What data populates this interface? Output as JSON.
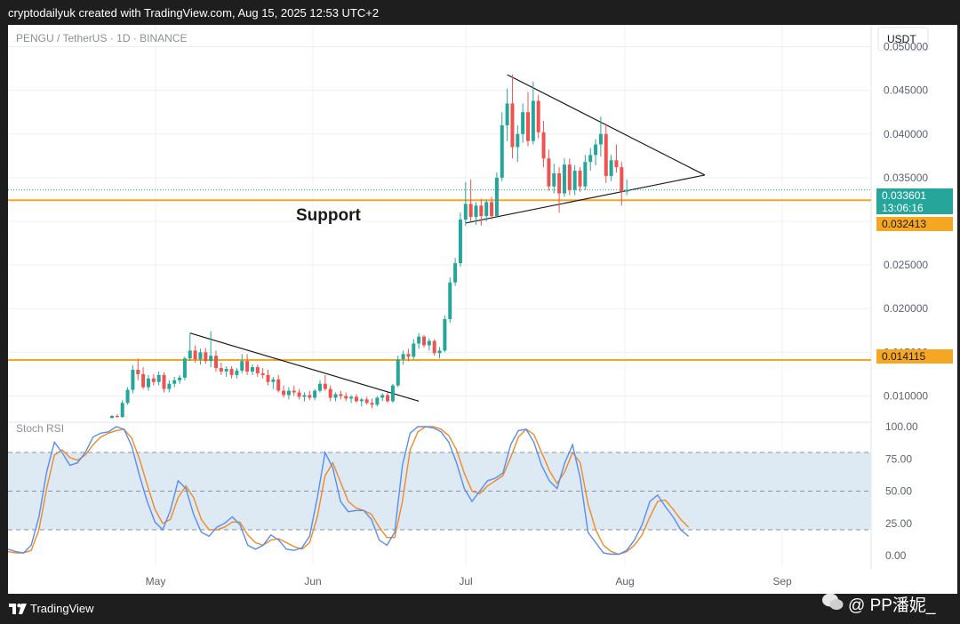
{
  "header": {
    "text": "cryptodailyuk created with TradingView.com, Aug 15, 2025 12:53 UTC+2"
  },
  "symbol_title": "PENGU / TetherUS · 1D · BINANCE",
  "price_axis": {
    "currency": "USDT",
    "ticks": [
      "0.050000",
      "0.045000",
      "0.040000",
      "0.035000",
      "0.025000",
      "0.020000",
      "0.015000",
      "0.010000"
    ],
    "current_price": "0.033601",
    "countdown": "13:06:16",
    "level_labels": [
      "0.032413",
      "0.014115"
    ]
  },
  "annotation": {
    "support": "Support"
  },
  "time_axis": {
    "labels": [
      "May",
      "Jun",
      "Jul",
      "Aug",
      "Sep"
    ]
  },
  "stoch": {
    "title": "Stoch RSI",
    "ticks": [
      "100.00",
      "75.00",
      "50.00",
      "25.00",
      "0.00"
    ]
  },
  "footer": {
    "brand": "TradingView"
  },
  "watermark": {
    "text": "公众号 · PP潘妮",
    "handle": "@ PP潘妮_"
  },
  "colors": {
    "up": "#26a69a",
    "down": "#ef5350",
    "support": "#f5a623",
    "k_line": "#5b8def",
    "d_line": "#f08a24",
    "band": "#dde9f3"
  },
  "chart_data": {
    "type": "candlestick",
    "symbol": "PENGU / TetherUS",
    "interval": "1D",
    "exchange": "BINANCE",
    "ylim": [
      0.0075,
      0.0525
    ],
    "horizontal_levels": [
      0.032413,
      0.014115
    ],
    "current_price": 0.033601,
    "candles": [
      {
        "o": 0.0075,
        "h": 0.0078,
        "l": 0.0074,
        "c": 0.0077
      },
      {
        "o": 0.0077,
        "h": 0.0079,
        "l": 0.0075,
        "c": 0.0076
      },
      {
        "o": 0.0076,
        "h": 0.0095,
        "l": 0.0075,
        "c": 0.0092
      },
      {
        "o": 0.0092,
        "h": 0.011,
        "l": 0.009,
        "c": 0.0107
      },
      {
        "o": 0.0107,
        "h": 0.0135,
        "l": 0.0103,
        "c": 0.013
      },
      {
        "o": 0.013,
        "h": 0.0143,
        "l": 0.0118,
        "c": 0.0125
      },
      {
        "o": 0.0125,
        "h": 0.0133,
        "l": 0.0108,
        "c": 0.011
      },
      {
        "o": 0.011,
        "h": 0.0124,
        "l": 0.0106,
        "c": 0.012
      },
      {
        "o": 0.012,
        "h": 0.0125,
        "l": 0.0112,
        "c": 0.0116
      },
      {
        "o": 0.0116,
        "h": 0.0128,
        "l": 0.0112,
        "c": 0.0124
      },
      {
        "o": 0.0124,
        "h": 0.0127,
        "l": 0.0104,
        "c": 0.0108
      },
      {
        "o": 0.0108,
        "h": 0.0118,
        "l": 0.0104,
        "c": 0.0114
      },
      {
        "o": 0.0114,
        "h": 0.0122,
        "l": 0.011,
        "c": 0.0118
      },
      {
        "o": 0.0118,
        "h": 0.0124,
        "l": 0.0114,
        "c": 0.0121
      },
      {
        "o": 0.0121,
        "h": 0.0145,
        "l": 0.0118,
        "c": 0.0143
      },
      {
        "o": 0.0143,
        "h": 0.0172,
        "l": 0.014,
        "c": 0.0152
      },
      {
        "o": 0.0152,
        "h": 0.0158,
        "l": 0.0138,
        "c": 0.0142
      },
      {
        "o": 0.0142,
        "h": 0.0154,
        "l": 0.0136,
        "c": 0.015
      },
      {
        "o": 0.015,
        "h": 0.0155,
        "l": 0.0137,
        "c": 0.014
      },
      {
        "o": 0.014,
        "h": 0.0174,
        "l": 0.0133,
        "c": 0.0146
      },
      {
        "o": 0.0146,
        "h": 0.0152,
        "l": 0.0128,
        "c": 0.0132
      },
      {
        "o": 0.0132,
        "h": 0.0138,
        "l": 0.0124,
        "c": 0.0128
      },
      {
        "o": 0.0128,
        "h": 0.0134,
        "l": 0.0122,
        "c": 0.0131
      },
      {
        "o": 0.0131,
        "h": 0.0134,
        "l": 0.012,
        "c": 0.0124
      },
      {
        "o": 0.0124,
        "h": 0.0132,
        "l": 0.012,
        "c": 0.0129
      },
      {
        "o": 0.0129,
        "h": 0.0148,
        "l": 0.0126,
        "c": 0.014
      },
      {
        "o": 0.014,
        "h": 0.0148,
        "l": 0.0124,
        "c": 0.0128
      },
      {
        "o": 0.0128,
        "h": 0.0136,
        "l": 0.0124,
        "c": 0.0133
      },
      {
        "o": 0.0133,
        "h": 0.0136,
        "l": 0.0122,
        "c": 0.0126
      },
      {
        "o": 0.0126,
        "h": 0.0132,
        "l": 0.012,
        "c": 0.0124
      },
      {
        "o": 0.0124,
        "h": 0.013,
        "l": 0.0112,
        "c": 0.0116
      },
      {
        "o": 0.0116,
        "h": 0.0122,
        "l": 0.0108,
        "c": 0.0119
      },
      {
        "o": 0.0119,
        "h": 0.0124,
        "l": 0.0104,
        "c": 0.0106
      },
      {
        "o": 0.0106,
        "h": 0.0112,
        "l": 0.0098,
        "c": 0.0101
      },
      {
        "o": 0.0101,
        "h": 0.011,
        "l": 0.0096,
        "c": 0.0106
      },
      {
        "o": 0.0106,
        "h": 0.0112,
        "l": 0.01,
        "c": 0.0104
      },
      {
        "o": 0.0104,
        "h": 0.0108,
        "l": 0.0096,
        "c": 0.0099
      },
      {
        "o": 0.0099,
        "h": 0.0104,
        "l": 0.0094,
        "c": 0.0101
      },
      {
        "o": 0.0101,
        "h": 0.0106,
        "l": 0.0095,
        "c": 0.0098
      },
      {
        "o": 0.0098,
        "h": 0.0108,
        "l": 0.0095,
        "c": 0.0106
      },
      {
        "o": 0.0106,
        "h": 0.0118,
        "l": 0.0104,
        "c": 0.0114
      },
      {
        "o": 0.0114,
        "h": 0.0124,
        "l": 0.0106,
        "c": 0.0108
      },
      {
        "o": 0.0108,
        "h": 0.0112,
        "l": 0.0094,
        "c": 0.0098
      },
      {
        "o": 0.0098,
        "h": 0.0104,
        "l": 0.0094,
        "c": 0.0102
      },
      {
        "o": 0.0102,
        "h": 0.0106,
        "l": 0.0096,
        "c": 0.01
      },
      {
        "o": 0.01,
        "h": 0.0104,
        "l": 0.0094,
        "c": 0.0097
      },
      {
        "o": 0.0097,
        "h": 0.0101,
        "l": 0.0092,
        "c": 0.0099
      },
      {
        "o": 0.0099,
        "h": 0.0102,
        "l": 0.0092,
        "c": 0.0094
      },
      {
        "o": 0.0094,
        "h": 0.0098,
        "l": 0.0088,
        "c": 0.0096
      },
      {
        "o": 0.0096,
        "h": 0.0099,
        "l": 0.009,
        "c": 0.0092
      },
      {
        "o": 0.0092,
        "h": 0.0097,
        "l": 0.0086,
        "c": 0.009
      },
      {
        "o": 0.009,
        "h": 0.01,
        "l": 0.0088,
        "c": 0.0098
      },
      {
        "o": 0.0098,
        "h": 0.0103,
        "l": 0.0094,
        "c": 0.0101
      },
      {
        "o": 0.0101,
        "h": 0.0104,
        "l": 0.0092,
        "c": 0.0094
      },
      {
        "o": 0.0094,
        "h": 0.0114,
        "l": 0.0092,
        "c": 0.0112
      },
      {
        "o": 0.0112,
        "h": 0.0146,
        "l": 0.011,
        "c": 0.0142
      },
      {
        "o": 0.0142,
        "h": 0.0152,
        "l": 0.0136,
        "c": 0.0148
      },
      {
        "o": 0.0148,
        "h": 0.0154,
        "l": 0.014,
        "c": 0.0145
      },
      {
        "o": 0.0145,
        "h": 0.0165,
        "l": 0.0142,
        "c": 0.016
      },
      {
        "o": 0.016,
        "h": 0.0172,
        "l": 0.0154,
        "c": 0.0168
      },
      {
        "o": 0.0168,
        "h": 0.017,
        "l": 0.0155,
        "c": 0.0158
      },
      {
        "o": 0.0158,
        "h": 0.0166,
        "l": 0.0152,
        "c": 0.0163
      },
      {
        "o": 0.0163,
        "h": 0.0165,
        "l": 0.0146,
        "c": 0.0149
      },
      {
        "o": 0.0149,
        "h": 0.0156,
        "l": 0.0143,
        "c": 0.0152
      },
      {
        "o": 0.0152,
        "h": 0.0192,
        "l": 0.015,
        "c": 0.0188
      },
      {
        "o": 0.0188,
        "h": 0.0236,
        "l": 0.0184,
        "c": 0.023
      },
      {
        "o": 0.023,
        "h": 0.0258,
        "l": 0.0226,
        "c": 0.0252
      },
      {
        "o": 0.0252,
        "h": 0.031,
        "l": 0.0248,
        "c": 0.0302
      },
      {
        "o": 0.0302,
        "h": 0.0345,
        "l": 0.0295,
        "c": 0.032
      },
      {
        "o": 0.032,
        "h": 0.0348,
        "l": 0.03,
        "c": 0.0305
      },
      {
        "o": 0.0305,
        "h": 0.0322,
        "l": 0.0296,
        "c": 0.0318
      },
      {
        "o": 0.0318,
        "h": 0.0326,
        "l": 0.0295,
        "c": 0.0306
      },
      {
        "o": 0.0306,
        "h": 0.0325,
        "l": 0.03,
        "c": 0.0322
      },
      {
        "o": 0.0322,
        "h": 0.0328,
        "l": 0.0302,
        "c": 0.0306
      },
      {
        "o": 0.0306,
        "h": 0.0356,
        "l": 0.0304,
        "c": 0.035
      },
      {
        "o": 0.035,
        "h": 0.0425,
        "l": 0.0346,
        "c": 0.041
      },
      {
        "o": 0.041,
        "h": 0.0452,
        "l": 0.0392,
        "c": 0.0435
      },
      {
        "o": 0.0435,
        "h": 0.0468,
        "l": 0.0372,
        "c": 0.0385
      },
      {
        "o": 0.0385,
        "h": 0.041,
        "l": 0.0368,
        "c": 0.04
      },
      {
        "o": 0.04,
        "h": 0.0435,
        "l": 0.039,
        "c": 0.0425
      },
      {
        "o": 0.0425,
        "h": 0.0448,
        "l": 0.0386,
        "c": 0.0392
      },
      {
        "o": 0.0392,
        "h": 0.046,
        "l": 0.0388,
        "c": 0.0438
      },
      {
        "o": 0.0438,
        "h": 0.0445,
        "l": 0.0395,
        "c": 0.0402
      },
      {
        "o": 0.0402,
        "h": 0.0415,
        "l": 0.0362,
        "c": 0.0372
      },
      {
        "o": 0.0372,
        "h": 0.0382,
        "l": 0.0335,
        "c": 0.034
      },
      {
        "o": 0.034,
        "h": 0.0366,
        "l": 0.0332,
        "c": 0.0355
      },
      {
        "o": 0.0355,
        "h": 0.0362,
        "l": 0.031,
        "c": 0.0332
      },
      {
        "o": 0.0332,
        "h": 0.0372,
        "l": 0.0328,
        "c": 0.0365
      },
      {
        "o": 0.0365,
        "h": 0.0372,
        "l": 0.033,
        "c": 0.0336
      },
      {
        "o": 0.0336,
        "h": 0.0364,
        "l": 0.033,
        "c": 0.0358
      },
      {
        "o": 0.0358,
        "h": 0.0362,
        "l": 0.0334,
        "c": 0.034
      },
      {
        "o": 0.034,
        "h": 0.0376,
        "l": 0.0336,
        "c": 0.0368
      },
      {
        "o": 0.0368,
        "h": 0.0384,
        "l": 0.0358,
        "c": 0.0376
      },
      {
        "o": 0.0376,
        "h": 0.0394,
        "l": 0.0364,
        "c": 0.0388
      },
      {
        "o": 0.0388,
        "h": 0.042,
        "l": 0.0374,
        "c": 0.04
      },
      {
        "o": 0.04,
        "h": 0.0412,
        "l": 0.0344,
        "c": 0.0352
      },
      {
        "o": 0.0352,
        "h": 0.0376,
        "l": 0.0346,
        "c": 0.037
      },
      {
        "o": 0.037,
        "h": 0.0388,
        "l": 0.0356,
        "c": 0.0362
      },
      {
        "o": 0.0362,
        "h": 0.0368,
        "l": 0.0318,
        "c": 0.0334
      },
      {
        "o": 0.0334,
        "h": 0.0348,
        "l": 0.033,
        "c": 0.0336
      }
    ],
    "trendlines": [
      {
        "from": {
          "index": 15,
          "value": 0.0172
        },
        "to": {
          "index": 59,
          "value": 0.0094
        }
      },
      {
        "from": {
          "index": 76,
          "value": 0.0468
        },
        "to": {
          "index": 114,
          "value": 0.0353
        }
      },
      {
        "from": {
          "index": 68,
          "value": 0.0298
        },
        "to": {
          "index": 114,
          "value": 0.0353
        }
      }
    ],
    "stoch_rsi": {
      "ylim": [
        0,
        100
      ],
      "bands": [
        20,
        50,
        80
      ],
      "k": [
        5,
        3,
        2,
        8,
        30,
        65,
        88,
        80,
        70,
        72,
        80,
        92,
        95,
        96,
        100,
        98,
        85,
        62,
        42,
        26,
        20,
        35,
        58,
        52,
        32,
        18,
        15,
        22,
        25,
        30,
        24,
        8,
        5,
        8,
        16,
        12,
        5,
        4,
        6,
        15,
        45,
        80,
        68,
        42,
        34,
        35,
        35,
        28,
        12,
        8,
        18,
        70,
        95,
        100,
        100,
        99,
        96,
        88,
        72,
        52,
        42,
        50,
        58,
        60,
        64,
        86,
        97,
        98,
        88,
        70,
        58,
        52,
        72,
        86,
        60,
        18,
        10,
        2,
        1,
        1,
        4,
        12,
        24,
        42,
        47,
        38,
        30,
        20,
        15
      ],
      "d": [
        3,
        2,
        2,
        4,
        20,
        52,
        78,
        82,
        76,
        74,
        78,
        86,
        92,
        95,
        97,
        98,
        91,
        75,
        55,
        36,
        25,
        28,
        45,
        54,
        45,
        28,
        20,
        20,
        22,
        26,
        26,
        16,
        10,
        8,
        12,
        13,
        10,
        7,
        5,
        10,
        30,
        62,
        72,
        57,
        42,
        37,
        35,
        32,
        22,
        14,
        14,
        42,
        82,
        96,
        100,
        100,
        98,
        93,
        82,
        64,
        50,
        48,
        54,
        58,
        62,
        76,
        92,
        98,
        94,
        80,
        66,
        56,
        65,
        80,
        72,
        40,
        20,
        8,
        3,
        1,
        3,
        8,
        16,
        30,
        42,
        43,
        36,
        28,
        22
      ]
    }
  }
}
